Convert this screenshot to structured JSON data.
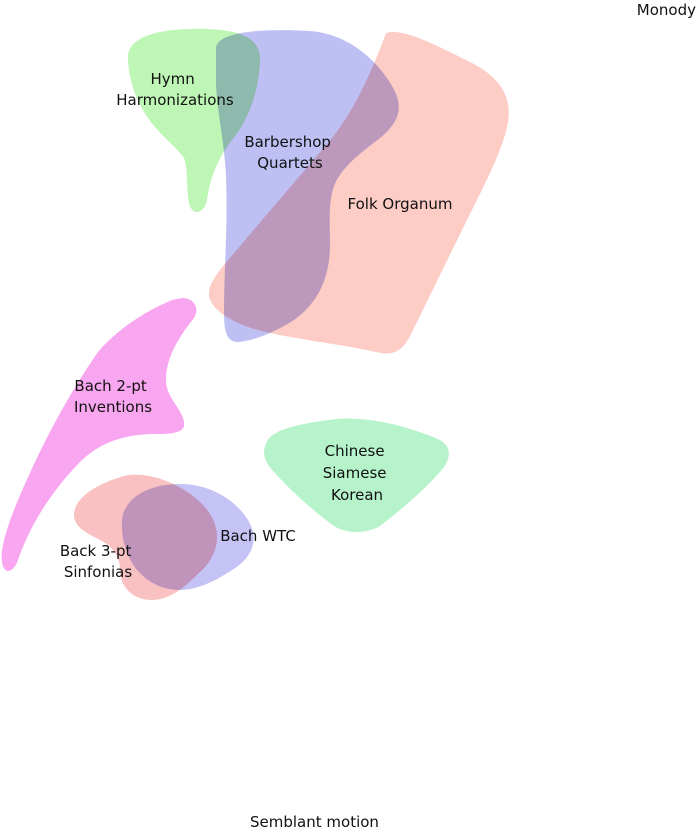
{
  "axis_labels": {
    "top_right": "Monody",
    "bottom": "Semblant motion"
  },
  "regions": [
    {
      "id": "hymn-harmonizations",
      "lines": [
        "Hymn",
        "Harmonizations"
      ],
      "color": "#b3f5a8"
    },
    {
      "id": "barbershop-quartets",
      "lines": [
        "Barbershop",
        "Quartets"
      ],
      "color": "#b3b5f2"
    },
    {
      "id": "folk-organum",
      "lines": [
        "Folk Organum"
      ],
      "color": "#fbb9ae"
    },
    {
      "id": "bach-2pt-inventions",
      "lines": [
        "Bach 2-pt",
        "Inventions"
      ],
      "color": "#f89cf0"
    },
    {
      "id": "chinese-siamese-korean",
      "lines": [
        "Chinese",
        "Siamese",
        "Korean"
      ],
      "color": "#aef2c5"
    },
    {
      "id": "back-3pt-sinfonias",
      "lines": [
        "Back 3-pt",
        "Sinfonias"
      ],
      "color": "#f7a9a9"
    },
    {
      "id": "bach-wtc",
      "lines": [
        "Bach WTC"
      ],
      "color": "#b7b3f4"
    }
  ]
}
